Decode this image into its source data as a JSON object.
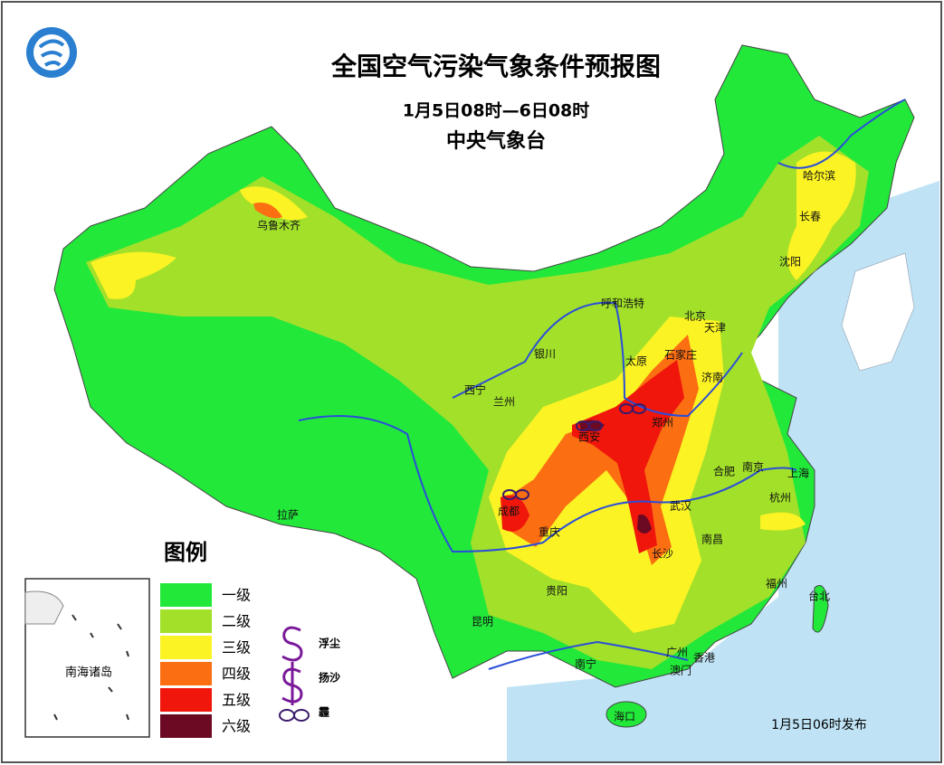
{
  "header": {
    "title": "全国空气污染气象条件预报图",
    "period": "1月5日08时—6日08时",
    "issuer": "中央气象台"
  },
  "cities": [
    "乌鲁木齐",
    "哈尔滨",
    "长春",
    "沈阳",
    "呼和浩特",
    "北京",
    "天津",
    "银川",
    "太原",
    "石家庄",
    "济南",
    "西宁",
    "兰州",
    "郑州",
    "西安",
    "合肥",
    "南京",
    "上海",
    "成都",
    "武汉",
    "杭州",
    "重庆",
    "拉萨",
    "长沙",
    "南昌",
    "贵阳",
    "福州",
    "台北",
    "昆明",
    "南宁",
    "广州",
    "香港",
    "澳门",
    "海口"
  ],
  "legend": {
    "title": "图例",
    "levels": [
      {
        "label": "一级",
        "color": "#22e83a"
      },
      {
        "label": "二级",
        "color": "#a2e02a"
      },
      {
        "label": "三级",
        "color": "#fbf323"
      },
      {
        "label": "四级",
        "color": "#fb6e12"
      },
      {
        "label": "五级",
        "color": "#f0160c"
      },
      {
        "label": "六级",
        "color": "#6b0a22"
      }
    ],
    "symbols": [
      "浮尘",
      "扬沙",
      "霾"
    ]
  },
  "inset": {
    "label": "南海诸岛"
  },
  "footer": {
    "issued": "1月5日06时发布"
  }
}
